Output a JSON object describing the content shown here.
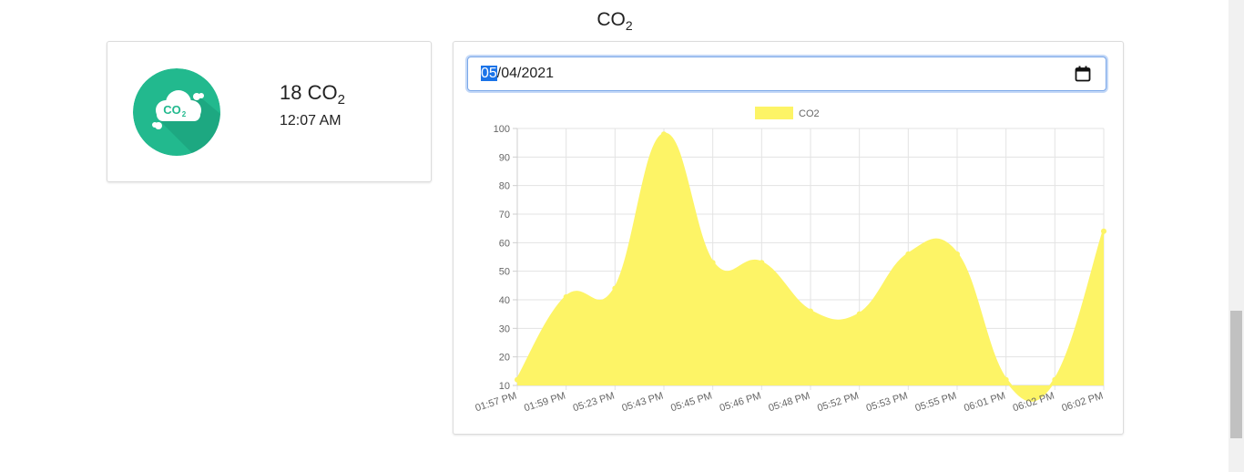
{
  "page": {
    "title_main": "CO",
    "title_sub": "2"
  },
  "reading": {
    "value": "18 CO",
    "value_sub": "2",
    "time": "12:07 AM",
    "logo_text": "CO",
    "logo_sub": "2"
  },
  "date_input": {
    "month": "05",
    "rest": "/04/2021"
  },
  "colors": {
    "accent": "#22b98e",
    "series_fill": "#fdf466",
    "selection": "#1a73e8"
  },
  "icons": {
    "calendar": "calendar-icon",
    "logo": "co2-cloud-icon"
  },
  "chart_data": {
    "type": "area",
    "title": "",
    "legend": {
      "label": "CO2",
      "position": "top"
    },
    "categories": [
      "01:57 PM",
      "01:59 PM",
      "05:23 PM",
      "05:43 PM",
      "05:45 PM",
      "05:46 PM",
      "05:48 PM",
      "05:52 PM",
      "05:53 PM",
      "05:55 PM",
      "06:01 PM",
      "06:02 PM",
      "06:02 PM"
    ],
    "series": [
      {
        "name": "CO2",
        "values": [
          12,
          41,
          44,
          98,
          53,
          53,
          36,
          35,
          56,
          56,
          12,
          12,
          64
        ]
      }
    ],
    "ylim": [
      10,
      100
    ],
    "yticks": [
      10,
      20,
      30,
      40,
      50,
      60,
      70,
      80,
      90,
      100
    ],
    "grid": true,
    "xlabel": "",
    "ylabel": ""
  }
}
